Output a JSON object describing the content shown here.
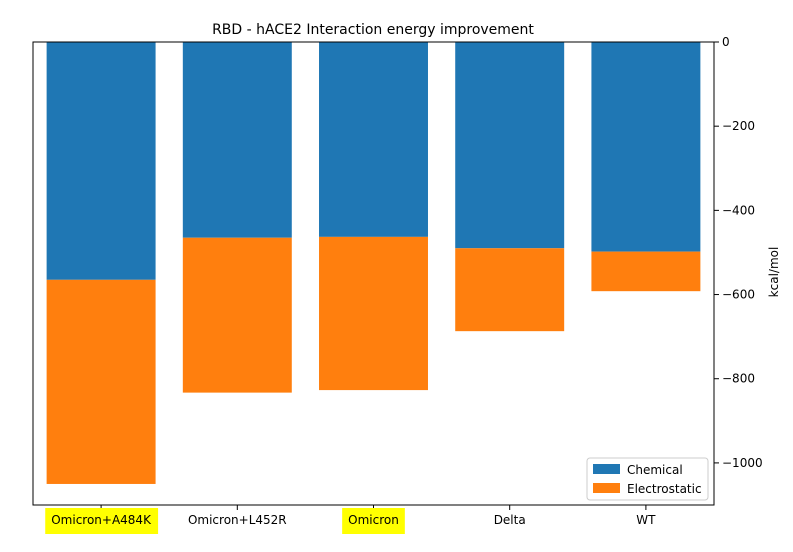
{
  "chart_data": {
    "type": "bar",
    "stacked": true,
    "title": "RBD - hACE2 Interaction energy improvement",
    "xlabel": "",
    "ylabel": "kcal/mol",
    "y_axis_side": "right",
    "categories": [
      "Omicron+A484K",
      "Omicron+L452R",
      "Omicron",
      "Delta",
      "WT"
    ],
    "highlighted_categories": [
      "Omicron+A484K",
      "Omicron"
    ],
    "highlight_color": "#ffff00",
    "series": [
      {
        "name": "Chemical",
        "color": "#1f77b4",
        "values": [
          -565,
          -465,
          -463,
          -490,
          -498
        ]
      },
      {
        "name": "Electrostatic",
        "color": "#ff7f0e",
        "values": [
          -485,
          -368,
          -364,
          -197,
          -94
        ]
      }
    ],
    "ylim": [
      -1100,
      0
    ],
    "yticks": [
      0,
      -200,
      -400,
      -600,
      -800,
      -1000
    ],
    "ytick_labels": [
      "0",
      "−200",
      "−400",
      "−600",
      "−800",
      "−1000"
    ],
    "legend_position": "lower right",
    "grid": false
  }
}
